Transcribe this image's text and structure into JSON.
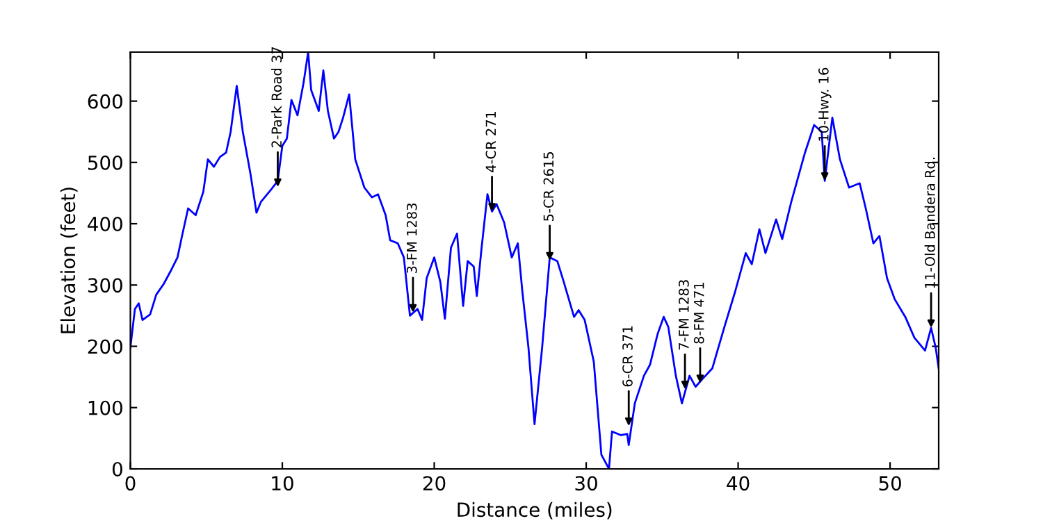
{
  "chart_data": {
    "type": "line",
    "xlabel": "Distance (miles)",
    "ylabel": "Elevation (feet)",
    "xlim": [
      0,
      53.2
    ],
    "ylim": [
      0,
      680
    ],
    "xticks": [
      0,
      10,
      20,
      30,
      40,
      50
    ],
    "yticks": [
      0,
      100,
      200,
      300,
      400,
      500,
      600
    ],
    "grid": false,
    "legend": false,
    "marker": "none",
    "line_style": "solid",
    "series": [
      {
        "color": "#0000ff",
        "x": [
          0,
          0.3,
          0.55,
          0.8,
          1.3,
          1.7,
          2.2,
          2.7,
          3.1,
          3.4,
          3.8,
          4.3,
          4.8,
          5.1,
          5.5,
          5.9,
          6.3,
          6.6,
          7.0,
          7.4,
          7.9,
          8.3,
          8.6,
          9.3,
          9.7,
          10.0,
          10.3,
          10.6,
          11.0,
          11.4,
          11.7,
          11.9,
          12.4,
          12.7,
          13.0,
          13.4,
          13.7,
          14.0,
          14.4,
          14.8,
          15.4,
          15.9,
          16.3,
          16.8,
          17.1,
          17.6,
          18.0,
          18.4,
          18.9,
          19.2,
          19.5,
          20.0,
          20.4,
          20.7,
          21.1,
          21.5,
          21.9,
          22.2,
          22.6,
          22.8,
          23.1,
          23.5,
          23.8,
          24.1,
          24.6,
          25.1,
          25.5,
          25.8,
          26.2,
          26.6,
          27.1,
          27.6,
          28.1,
          28.5,
          29.2,
          29.5,
          29.9,
          30.5,
          31.0,
          31.5,
          31.7,
          32.3,
          32.7,
          32.8,
          33.2,
          33.8,
          34.2,
          34.7,
          35.1,
          35.4,
          35.9,
          36.3,
          36.8,
          37.2,
          37.7,
          38.3,
          39.1,
          39.8,
          40.5,
          40.9,
          41.4,
          41.8,
          42.5,
          42.9,
          43.5,
          44.4,
          45.0,
          45.5,
          45.7,
          46.2,
          46.7,
          47.3,
          48.0,
          48.4,
          48.9,
          49.3,
          49.8,
          50.3,
          51.0,
          51.6,
          52.3,
          52.7,
          53.0,
          53.2
        ],
        "values": [
          198,
          261,
          270,
          243,
          252,
          284,
          302,
          325,
          345,
          380,
          425,
          414,
          452,
          505,
          493,
          509,
          516,
          550,
          625,
          550,
          482,
          418,
          436,
          457,
          470,
          527,
          539,
          602,
          577,
          630,
          680,
          618,
          584,
          650,
          584,
          539,
          550,
          573,
          611,
          505,
          459,
          443,
          448,
          414,
          373,
          368,
          345,
          250,
          261,
          243,
          311,
          345,
          305,
          245,
          361,
          384,
          266,
          339,
          330,
          282,
          357,
          448,
          420,
          432,
          402,
          345,
          368,
          289,
          198,
          73,
          198,
          345,
          339,
          307,
          248,
          259,
          243,
          175,
          23,
          0,
          61,
          55,
          57,
          39,
          107,
          152,
          170,
          220,
          248,
          232,
          152,
          107,
          152,
          134,
          148,
          164,
          232,
          289,
          352,
          334,
          391,
          352,
          407,
          375,
          436,
          516,
          561,
          550,
          470,
          573,
          505,
          459,
          466,
          425,
          368,
          380,
          311,
          277,
          248,
          214,
          193,
          230,
          198,
          164
        ]
      }
    ],
    "annotations": [
      {
        "text": "2-Park Road 37",
        "x": 9.7,
        "y": 460
      },
      {
        "text": "3-FM 1283",
        "x": 18.6,
        "y": 255
      },
      {
        "text": "4-CR 271",
        "x": 23.8,
        "y": 420
      },
      {
        "text": "5-CR 2615",
        "x": 27.6,
        "y": 340
      },
      {
        "text": "6-CR 371",
        "x": 32.8,
        "y": 70
      },
      {
        "text": "7-FM 1283",
        "x": 36.5,
        "y": 130
      },
      {
        "text": "8-FM 471",
        "x": 37.5,
        "y": 140
      },
      {
        "text": "10-Hwy. 16",
        "x": 45.7,
        "y": 470
      },
      {
        "text": "11-Old Bandera Rd.",
        "x": 52.7,
        "y": 230
      }
    ]
  }
}
